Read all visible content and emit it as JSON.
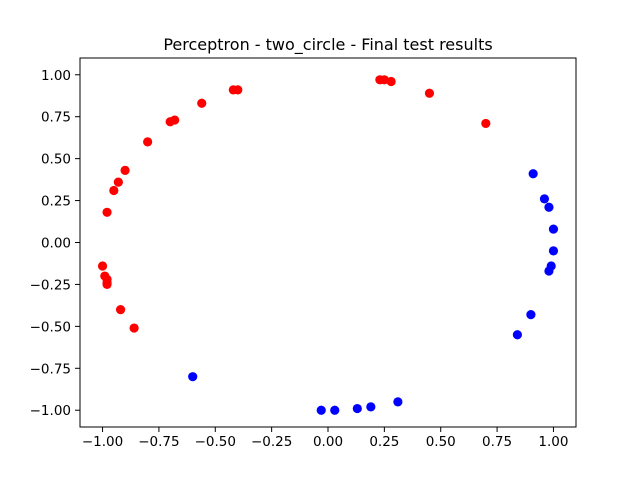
{
  "chart_data": {
    "type": "scatter",
    "title": "Perceptron - two_circle - Final test results",
    "xlabel": "",
    "ylabel": "",
    "xlim": [
      -1.1,
      1.1
    ],
    "ylim": [
      -1.1,
      1.1
    ],
    "xticks": [
      -1.0,
      -0.75,
      -0.5,
      -0.25,
      0.0,
      0.25,
      0.5,
      0.75,
      1.0
    ],
    "xtick_labels": [
      "−1.00",
      "−0.75",
      "−0.50",
      "−0.25",
      "0.00",
      "0.25",
      "0.50",
      "0.75",
      "1.00"
    ],
    "yticks": [
      -1.0,
      -0.75,
      -0.5,
      -0.25,
      0.0,
      0.25,
      0.5,
      0.75,
      1.0
    ],
    "ytick_labels": [
      "−1.00",
      "−0.75",
      "−0.50",
      "−0.25",
      "0.00",
      "0.25",
      "0.50",
      "0.75",
      "1.00"
    ],
    "grid": false,
    "series": [
      {
        "color": "#ff0000",
        "points": [
          [
            0.23,
            0.97
          ],
          [
            0.25,
            0.97
          ],
          [
            0.28,
            0.96
          ],
          [
            0.45,
            0.89
          ],
          [
            0.7,
            0.71
          ],
          [
            -0.42,
            0.91
          ],
          [
            -0.4,
            0.91
          ],
          [
            -0.56,
            0.83
          ],
          [
            -0.68,
            0.73
          ],
          [
            -0.7,
            0.72
          ],
          [
            -0.8,
            0.6
          ],
          [
            -0.9,
            0.43
          ],
          [
            -0.93,
            0.36
          ],
          [
            -0.95,
            0.31
          ],
          [
            -0.98,
            0.18
          ],
          [
            -1.0,
            -0.14
          ],
          [
            -0.99,
            -0.2
          ],
          [
            -0.98,
            -0.22
          ],
          [
            -0.98,
            -0.24
          ],
          [
            -0.98,
            -0.25
          ],
          [
            -0.92,
            -0.4
          ],
          [
            -0.86,
            -0.51
          ]
        ]
      },
      {
        "color": "#0000ff",
        "points": [
          [
            0.91,
            0.41
          ],
          [
            0.96,
            0.26
          ],
          [
            0.98,
            0.21
          ],
          [
            1.0,
            0.08
          ],
          [
            1.0,
            -0.05
          ],
          [
            0.99,
            -0.14
          ],
          [
            0.98,
            -0.17
          ],
          [
            0.9,
            -0.43
          ],
          [
            0.84,
            -0.55
          ],
          [
            -0.6,
            -0.8
          ],
          [
            0.31,
            -0.95
          ],
          [
            0.19,
            -0.98
          ],
          [
            0.13,
            -0.99
          ],
          [
            0.03,
            -1.0
          ],
          [
            -0.03,
            -1.0
          ]
        ]
      }
    ]
  }
}
